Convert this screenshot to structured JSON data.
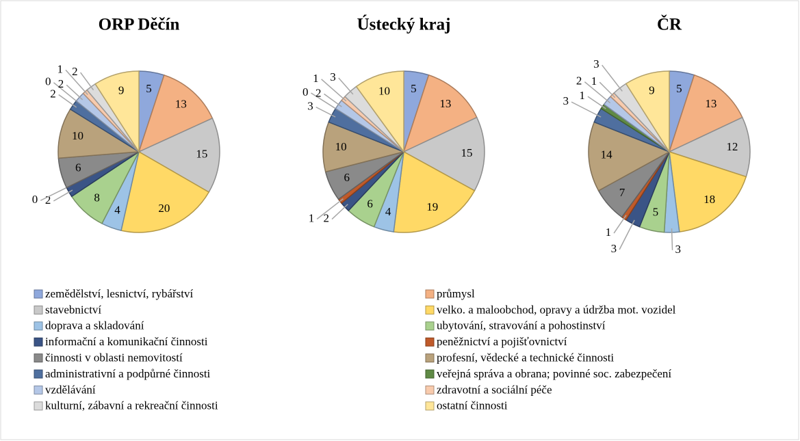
{
  "legend": {
    "categories": [
      "zemědělství, lesnictví, rybářství",
      "průmysl",
      "stavebnictví",
      "velko. a maloobchod, opravy a údržba mot. vozidel",
      "doprava a skladování",
      "ubytování, stravování a pohostinství",
      "informační a komunikační činnosti",
      "peněžnictví a pojišťovnictví",
      "činnosti v oblasti nemovitostí",
      "profesní, vědecké a technické činnosti",
      "administrativní a podpůrné činnosti",
      "veřejná správa a obrana; povinné soc. zabezpečení",
      "vzdělávání",
      "zdravotní a sociální péče",
      "kulturní, zábavní a rekreační činnosti",
      "ostatní činnosti"
    ],
    "colors": [
      "#8fa8dc",
      "#f4b183",
      "#c9c9c9",
      "#ffd966",
      "#9dc3e6",
      "#a9d18e",
      "#3a5486",
      "#c05a2a",
      "#8a8a8a",
      "#b9a27c",
      "#4f6f9f",
      "#5f8a45",
      "#b4c7e7",
      "#f8cbad",
      "#dcdcdc",
      "#ffe699"
    ]
  },
  "chart_data": [
    {
      "type": "pie",
      "title": "ORP Děčín",
      "values": [
        5,
        13,
        15,
        20,
        4,
        8,
        2,
        0,
        6,
        10,
        2,
        0,
        2,
        1,
        2,
        9
      ]
    },
    {
      "type": "pie",
      "title": "Ústecký kraj",
      "values": [
        5,
        13,
        15,
        19,
        4,
        6,
        2,
        1,
        6,
        10,
        3,
        0,
        2,
        1,
        3,
        10
      ]
    },
    {
      "type": "pie",
      "title": "ČR",
      "values": [
        5,
        13,
        12,
        18,
        3,
        5,
        3,
        1,
        7,
        14,
        3,
        1,
        2,
        1,
        3,
        9
      ]
    }
  ]
}
